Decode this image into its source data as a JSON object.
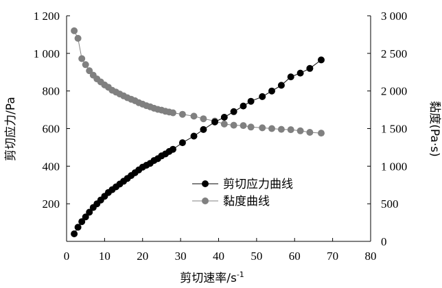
{
  "chart_data": {
    "type": "scatter",
    "title": "",
    "xlabel": "剪切速率/s",
    "xlabel_sup": "-1",
    "ylabel_left": "剪切应力/Pa",
    "ylabel_right": "黏度(Pa·s)",
    "xlim": [
      0,
      80
    ],
    "ylim_left": [
      0,
      1200
    ],
    "ylim_right": [
      0,
      3000
    ],
    "x_ticks": [
      0,
      10,
      20,
      30,
      40,
      50,
      60,
      70,
      80
    ],
    "x_tick_labels": [
      "0",
      "10",
      "20",
      "30",
      "40",
      "50",
      "60",
      "70",
      "80"
    ],
    "y_left_ticks": [
      200,
      400,
      600,
      800,
      1000,
      1200
    ],
    "y_left_tick_labels": [
      "200",
      "400",
      "600",
      "800",
      "1 000",
      "1 200"
    ],
    "y_right_ticks": [
      0,
      500,
      1000,
      1500,
      2000,
      2500,
      3000
    ],
    "y_right_tick_labels": [
      "0",
      "500",
      "1 000",
      "1 500",
      "2 000",
      "2 500",
      "3 000"
    ],
    "grid": false,
    "legend_position": "center-right",
    "series": [
      {
        "name": "剪切应力曲线",
        "axis": "left",
        "color": "#000000",
        "x": [
          2,
          3,
          4,
          5,
          6,
          7,
          8,
          9,
          10,
          11,
          12,
          13,
          14,
          15,
          16,
          17,
          18,
          19,
          20,
          21,
          22,
          23,
          24,
          25,
          26,
          27,
          28,
          30.5,
          33.5,
          36,
          39,
          41.5,
          44,
          46.5,
          48.5,
          51.5,
          54,
          56.5,
          59,
          61.5,
          64,
          67
        ],
        "y": [
          40,
          75,
          105,
          130,
          155,
          180,
          200,
          220,
          240,
          260,
          275,
          290,
          305,
          320,
          335,
          350,
          365,
          380,
          395,
          405,
          415,
          430,
          440,
          455,
          465,
          478,
          490,
          525,
          560,
          595,
          635,
          660,
          690,
          720,
          745,
          770,
          800,
          830,
          875,
          895,
          920,
          965
        ]
      },
      {
        "name": "黏度曲线",
        "axis": "right",
        "color": "#808080",
        "x": [
          2,
          3,
          4,
          5,
          6,
          7,
          8,
          9,
          10,
          11,
          12,
          13,
          14,
          15,
          16,
          17,
          18,
          19,
          20,
          21,
          22,
          23,
          24,
          25,
          26,
          27,
          28,
          30.5,
          33.5,
          36,
          39,
          41.5,
          44,
          46.5,
          48.5,
          51.5,
          54,
          56.5,
          59,
          61.5,
          64,
          67
        ],
        "y": [
          2800,
          2700,
          2430,
          2350,
          2270,
          2210,
          2160,
          2120,
          2080,
          2050,
          2010,
          1985,
          1960,
          1935,
          1910,
          1890,
          1870,
          1845,
          1825,
          1805,
          1790,
          1770,
          1755,
          1745,
          1730,
          1720,
          1710,
          1690,
          1665,
          1630,
          1600,
          1560,
          1545,
          1540,
          1520,
          1510,
          1500,
          1490,
          1485,
          1470,
          1450,
          1440
        ]
      }
    ]
  }
}
